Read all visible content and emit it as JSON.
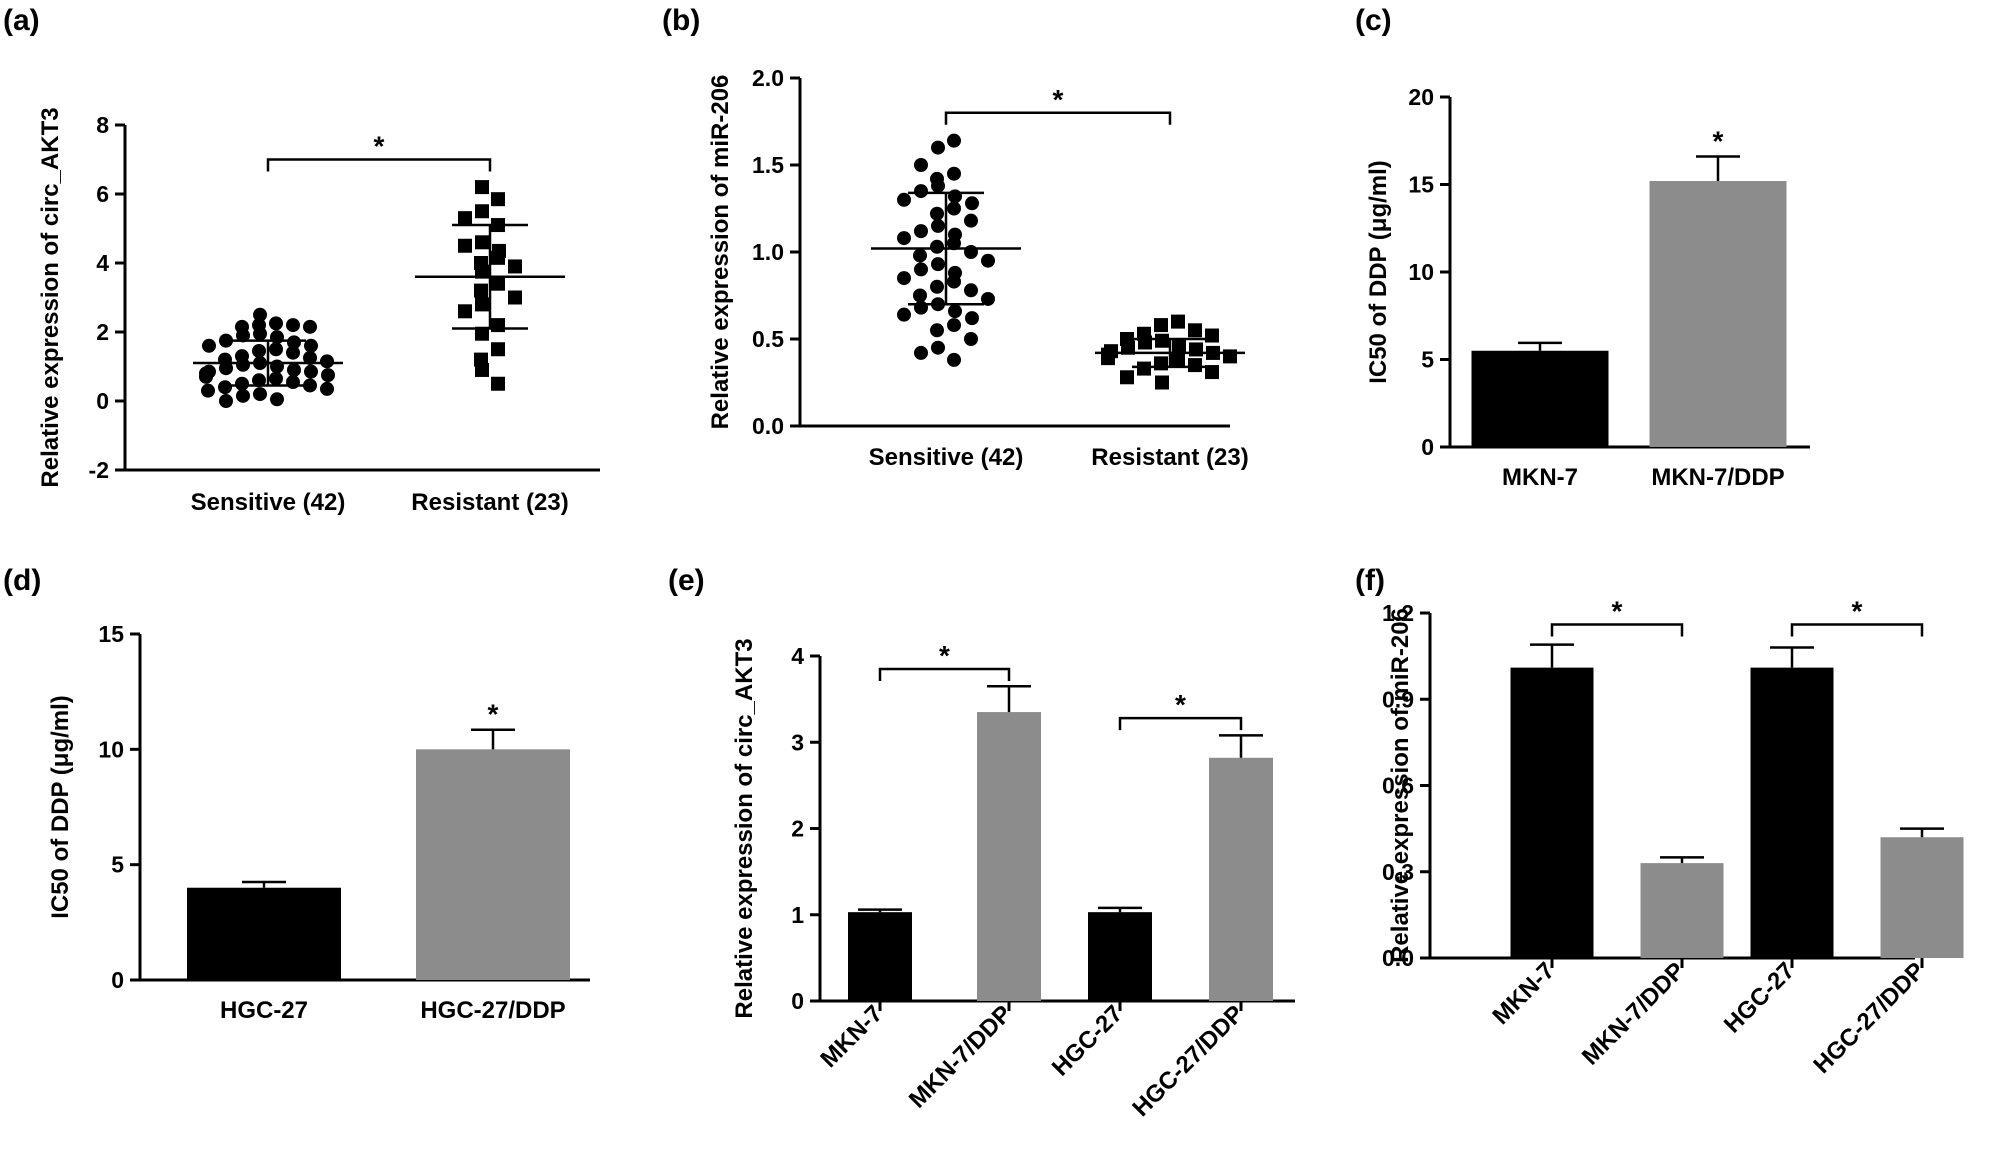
{
  "colors": {
    "black_bar": "#000000",
    "grey_bar": "#8c8c8c",
    "axis": "#000000"
  },
  "chart_data": [
    {
      "panel": "(a)",
      "type": "scatter",
      "ylabel": "Relative expression of circ_AKT3",
      "yticks": [
        "-2",
        "0",
        "2",
        "4",
        "6",
        "8"
      ],
      "ylim": [
        -2,
        8
      ],
      "categories": [
        "Sensitive (42)",
        "Resistant (23)"
      ],
      "markers": [
        "circle",
        "square"
      ],
      "series": [
        {
          "name": "Sensitive (42)",
          "mean": 1.1,
          "sd": 0.65,
          "values": [
            2.5,
            2.25,
            2.2,
            2.2,
            2.15,
            2.15,
            1.95,
            1.9,
            1.85,
            1.75,
            1.7,
            1.6,
            1.6,
            1.5,
            1.45,
            1.4,
            1.3,
            1.25,
            1.2,
            1.15,
            1.1,
            1.05,
            1.0,
            0.95,
            0.9,
            0.85,
            0.85,
            0.8,
            0.75,
            0.7,
            0.65,
            0.6,
            0.55,
            0.5,
            0.45,
            0.4,
            0.35,
            0.3,
            0.2,
            0.15,
            0.05,
            0.0
          ]
        },
        {
          "name": "Resistant (23)",
          "mean": 3.6,
          "sd": 1.5,
          "values": [
            6.2,
            5.85,
            5.5,
            5.3,
            5.1,
            4.6,
            4.5,
            4.35,
            4.15,
            4.0,
            3.9,
            3.75,
            3.4,
            3.2,
            3.0,
            2.8,
            2.6,
            2.2,
            1.95,
            1.5,
            1.2,
            0.9,
            0.5
          ]
        }
      ],
      "significance": [
        {
          "pair": [
            0,
            1
          ],
          "y": 7.0,
          "label": "*"
        }
      ]
    },
    {
      "panel": "(b)",
      "type": "scatter",
      "ylabel": "Relative expression of miR-206",
      "yticks": [
        "0.0",
        "0.5",
        "1.0",
        "1.5",
        "2.0"
      ],
      "ylim": [
        0,
        2.0
      ],
      "categories": [
        "Sensitive (42)",
        "Resistant (23)"
      ],
      "markers": [
        "circle",
        "square"
      ],
      "series": [
        {
          "name": "Sensitive (42)",
          "mean": 1.02,
          "sd": 0.32,
          "values": [
            1.64,
            1.6,
            1.5,
            1.45,
            1.42,
            1.38,
            1.35,
            1.32,
            1.3,
            1.28,
            1.25,
            1.22,
            1.18,
            1.15,
            1.12,
            1.1,
            1.08,
            1.05,
            1.03,
            1.0,
            0.98,
            0.95,
            0.93,
            0.9,
            0.88,
            0.85,
            0.83,
            0.8,
            0.78,
            0.75,
            0.73,
            0.7,
            0.68,
            0.66,
            0.64,
            0.62,
            0.58,
            0.55,
            0.5,
            0.45,
            0.42,
            0.38
          ]
        },
        {
          "name": "Resistant (23)",
          "mean": 0.42,
          "sd": 0.08,
          "values": [
            0.6,
            0.58,
            0.55,
            0.53,
            0.52,
            0.5,
            0.49,
            0.48,
            0.46,
            0.45,
            0.44,
            0.43,
            0.42,
            0.41,
            0.4,
            0.39,
            0.38,
            0.36,
            0.35,
            0.33,
            0.31,
            0.28,
            0.25
          ]
        }
      ],
      "significance": [
        {
          "pair": [
            0,
            1
          ],
          "y": 1.8,
          "label": "*"
        }
      ]
    },
    {
      "panel": "(c)",
      "type": "bar",
      "ylabel": "IC50 of DDP (μg/ml)",
      "yticks": [
        "0",
        "5",
        "10",
        "15",
        "20"
      ],
      "ylim": [
        0,
        20
      ],
      "categories": [
        "MKN-7",
        "MKN-7/DDP"
      ],
      "values": [
        5.5,
        15.2
      ],
      "errors": [
        0.45,
        1.4
      ],
      "bar_colors": [
        "#000000",
        "#8c8c8c"
      ],
      "stars": [
        {
          "bar": 1,
          "label": "*"
        }
      ]
    },
    {
      "panel": "(d)",
      "type": "bar",
      "ylabel": "IC50 of DDP (μg/ml)",
      "yticks": [
        "0",
        "5",
        "10",
        "15"
      ],
      "ylim": [
        0,
        15
      ],
      "categories": [
        "HGC-27",
        "HGC-27/DDP"
      ],
      "values": [
        4.0,
        10.0
      ],
      "errors": [
        0.25,
        0.85
      ],
      "bar_colors": [
        "#000000",
        "#8c8c8c"
      ],
      "stars": [
        {
          "bar": 1,
          "label": "*"
        }
      ]
    },
    {
      "panel": "(e)",
      "type": "bar",
      "ylabel": "Relative expression of circ_AKT3",
      "yticks": [
        "0",
        "1",
        "2",
        "3",
        "4"
      ],
      "ylim": [
        0,
        4
      ],
      "categories": [
        "MKN-7",
        "MKN-7/DDP",
        "HGC-27",
        "HGC-27/DDP"
      ],
      "values": [
        1.03,
        3.35,
        1.03,
        2.82
      ],
      "errors": [
        0.03,
        0.3,
        0.05,
        0.26
      ],
      "bar_colors": [
        "#000000",
        "#8c8c8c",
        "#000000",
        "#8c8c8c"
      ],
      "significance": [
        {
          "pair": [
            0,
            1
          ],
          "y": 3.85,
          "label": "*"
        },
        {
          "pair": [
            2,
            3
          ],
          "y": 3.28,
          "label": "*"
        }
      ],
      "rotated_labels": true
    },
    {
      "panel": "(f)",
      "type": "bar",
      "ylabel": "Relative expression of miR-206",
      "yticks": [
        "0.0",
        "0.3",
        "0.6",
        "0.9",
        "1.2"
      ],
      "ylim": [
        0,
        1.2
      ],
      "categories": [
        "MKN-7",
        "MKN-7/DDP",
        "HGC-27",
        "HGC-27/DDP"
      ],
      "values": [
        1.01,
        0.33,
        1.01,
        0.42
      ],
      "errors": [
        0.08,
        0.02,
        0.07,
        0.03
      ],
      "bar_colors": [
        "#000000",
        "#8c8c8c",
        "#000000",
        "#8c8c8c"
      ],
      "significance": [
        {
          "pair": [
            0,
            1
          ],
          "y": 1.16,
          "label": "*"
        },
        {
          "pair": [
            2,
            3
          ],
          "y": 1.16,
          "label": "*"
        }
      ],
      "rotated_labels": true
    }
  ]
}
